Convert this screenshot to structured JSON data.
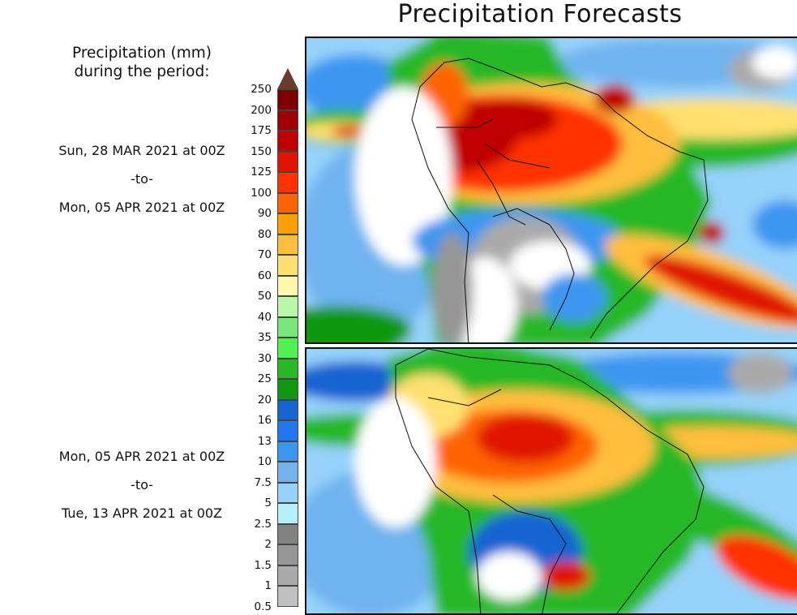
{
  "title": "Precipitation Forecasts",
  "legend": {
    "heading_line1": "Precipitation (mm)",
    "heading_line2": "during the period:",
    "ticks": [
      "250",
      "200",
      "175",
      "150",
      "125",
      "100",
      "90",
      "80",
      "70",
      "60",
      "50",
      "40",
      "35",
      "30",
      "25",
      "20",
      "16",
      "13",
      "10",
      "7.5",
      "5",
      "2.5",
      "2",
      "1.5",
      "1",
      "0.5"
    ],
    "colors": [
      "#7d0000",
      "#a00000",
      "#c00000",
      "#e01400",
      "#ff3200",
      "#ff6400",
      "#ffa000",
      "#ffbe3c",
      "#ffe070",
      "#fff8aa",
      "#b8f8a8",
      "#78e878",
      "#50f050",
      "#28b828",
      "#109810",
      "#1464d2",
      "#2078f0",
      "#3c96f0",
      "#70b4f0",
      "#96d2fa",
      "#b4f0fa",
      "#828282",
      "#969696",
      "#aaaaaa",
      "#c0c0c0"
    ],
    "overflow_color": "#6b3a2e"
  },
  "panels": [
    {
      "start": "Sun, 28 MAR 2021 at 00Z",
      "sep": "-to-",
      "end": "Mon, 05 APR 2021 at 00Z"
    },
    {
      "start": "Mon, 05 APR 2021 at 00Z",
      "sep": "-to-",
      "end": "Tue, 13 APR 2021 at 00Z"
    }
  ]
}
